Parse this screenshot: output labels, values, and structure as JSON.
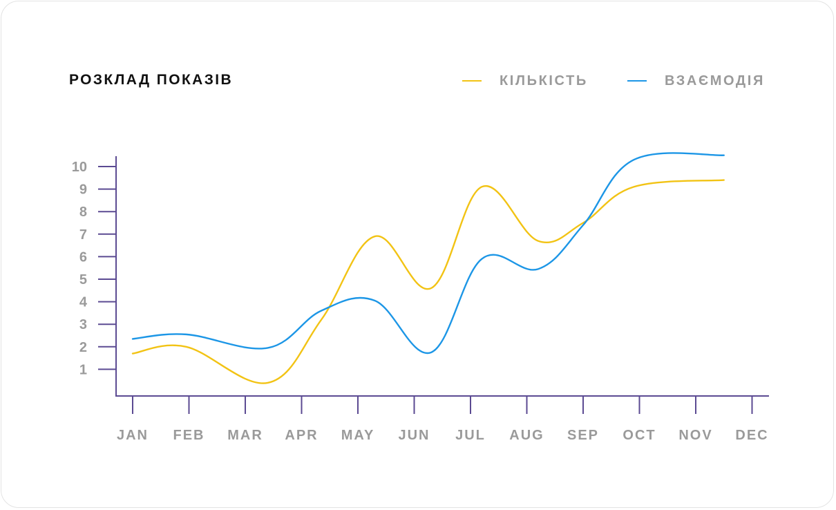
{
  "colors": {
    "axis": "#5b4a92",
    "count": "#f2c314",
    "interaction": "#1c96e6",
    "tick_text": "#9a9a9a"
  },
  "chart_data": {
    "type": "line",
    "title": "РОЗКЛАД ПОКАЗІВ",
    "categories": [
      "JAN",
      "FEB",
      "MAR",
      "APR",
      "MAY",
      "JUN",
      "JUL",
      "AUG",
      "SEP",
      "OCT",
      "NOV",
      "DEC"
    ],
    "y_ticks": [
      "1",
      "2",
      "3",
      "4",
      "5",
      "6",
      "7",
      "8",
      "9",
      "10"
    ],
    "ylim": [
      0,
      10.5
    ],
    "xlabel": "",
    "ylabel": "",
    "grid": false,
    "legend_position": "top-right",
    "series": [
      {
        "name": "КІЛЬКІСТЬ",
        "color_key": "count",
        "points": [
          [
            0,
            1.7
          ],
          [
            0.95,
            2.0
          ],
          [
            2.4,
            0.4
          ],
          [
            3.35,
            3.2
          ],
          [
            4.3,
            6.9
          ],
          [
            5.3,
            4.6
          ],
          [
            6.2,
            9.1
          ],
          [
            7.2,
            6.7
          ],
          [
            8.0,
            7.5
          ],
          [
            8.9,
            9.1
          ],
          [
            10.5,
            9.4
          ]
        ]
      },
      {
        "name": "ВЗАЄМОДІЯ",
        "color_key": "interaction",
        "points": [
          [
            0,
            2.35
          ],
          [
            0.95,
            2.55
          ],
          [
            2.4,
            1.95
          ],
          [
            3.35,
            3.6
          ],
          [
            4.3,
            4.05
          ],
          [
            5.3,
            1.75
          ],
          [
            6.2,
            5.9
          ],
          [
            7.2,
            5.45
          ],
          [
            8.0,
            7.4
          ],
          [
            8.9,
            10.3
          ],
          [
            10.5,
            10.5
          ]
        ]
      }
    ]
  }
}
